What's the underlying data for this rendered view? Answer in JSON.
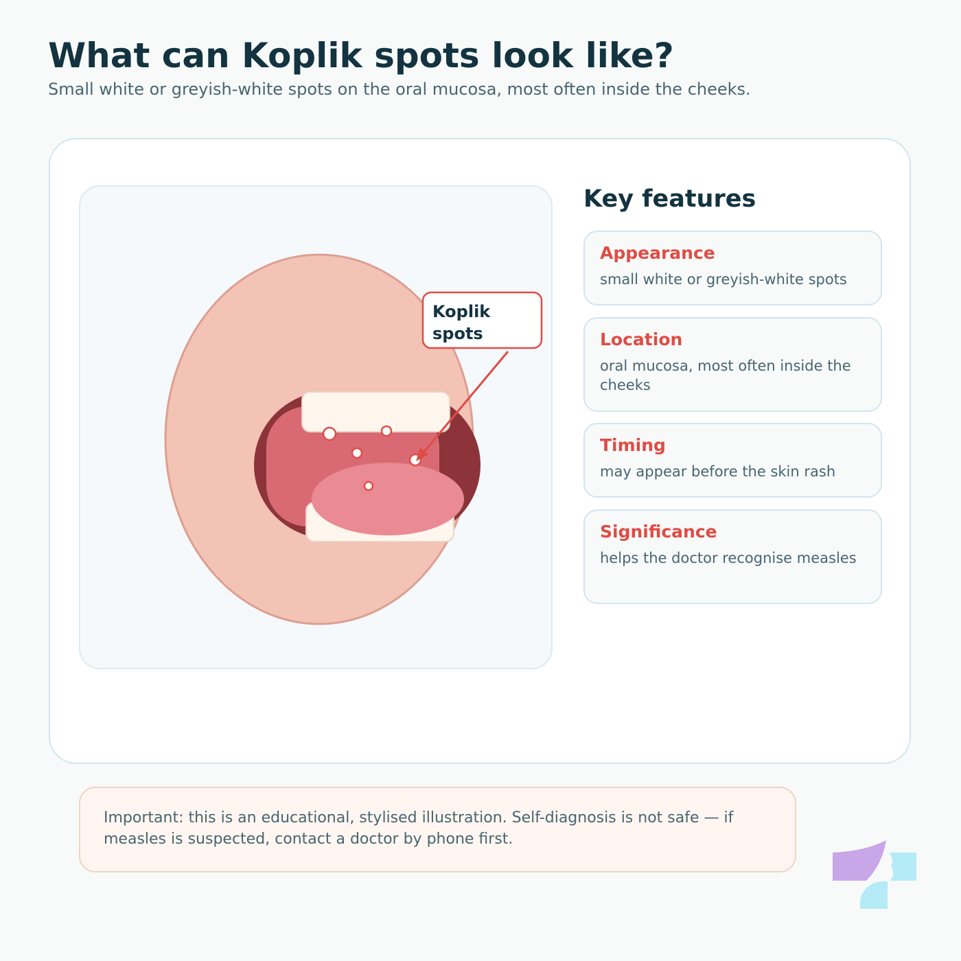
{
  "header": {
    "title": "What can Koplik spots look like?",
    "subtitle": "Small white or greyish-white spots on the oral mucosa, most often inside the cheeks."
  },
  "illustration": {
    "callout": "Koplik spots"
  },
  "features": {
    "title": "Key features",
    "items": [
      {
        "label": "Appearance",
        "text": "small white or greyish-white spots"
      },
      {
        "label": "Location",
        "text": "oral mucosa, most often inside the cheeks"
      },
      {
        "label": "Timing",
        "text": "may appear before the skin rash"
      },
      {
        "label": "Significance",
        "text": "helps the doctor recognise measles"
      }
    ]
  },
  "note": "Important: this is an educational, stylised illustration. Self-diagnosis is not safe — if measles is suspected, contact a doctor by phone first."
}
